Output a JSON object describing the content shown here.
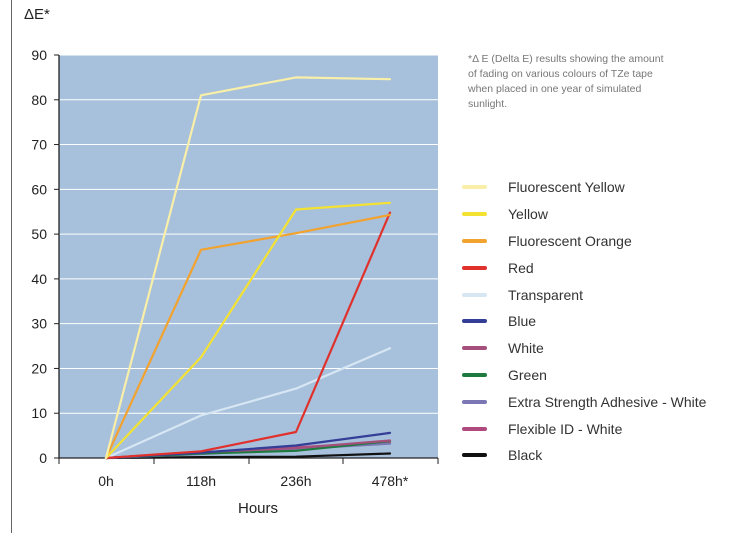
{
  "chart_data": {
    "type": "line",
    "ylabel": "ΔE*",
    "xlabel": "Hours",
    "categories": [
      "0h",
      "118h",
      "236h",
      "478h*"
    ],
    "ylim": [
      0,
      90
    ],
    "yticks": [
      0,
      10,
      20,
      30,
      40,
      50,
      60,
      70,
      80,
      90
    ],
    "grid": true,
    "background_color": "#a7c1dc",
    "legend_position": "right",
    "footnote": "*Δ E (Delta E) results showing the amount of fading on various colours of TZe tape when placed in one year of simulated sunlight.",
    "series": [
      {
        "name": "Fluorescent Yellow",
        "color": "#f9efa8",
        "values": [
          0,
          81,
          85,
          84.6
        ]
      },
      {
        "name": "Yellow",
        "color": "#f4e233",
        "values": [
          0,
          22.5,
          55.5,
          57
        ]
      },
      {
        "name": "Fluorescent Orange",
        "color": "#f2a22e",
        "values": [
          0,
          46.5,
          50.2,
          54.3
        ]
      },
      {
        "name": "Red",
        "color": "#e0312d",
        "values": [
          0,
          1.5,
          5.8,
          54.8
        ]
      },
      {
        "name": "Transparent",
        "color": "#d7e6f3",
        "values": [
          0,
          9.5,
          15.5,
          24.5
        ]
      },
      {
        "name": "Blue",
        "color": "#343e97",
        "values": [
          0,
          1.2,
          2.8,
          5.6
        ]
      },
      {
        "name": "White",
        "color": "#a5507c",
        "values": [
          0,
          1.3,
          2.2,
          3.9
        ]
      },
      {
        "name": "Green",
        "color": "#1f7a40",
        "values": [
          0,
          1.0,
          1.6,
          3.8
        ]
      },
      {
        "name": "Extra Strength Adhesive - White",
        "color": "#7b77b5",
        "values": [
          0,
          0.9,
          2.0,
          3.2
        ]
      },
      {
        "name": "Flexible ID - White",
        "color": "#b04a7e",
        "values": [
          0,
          1.1,
          2.4,
          3.5
        ]
      },
      {
        "name": "Black",
        "color": "#111111",
        "values": [
          0,
          0.2,
          0.3,
          1.0
        ]
      }
    ]
  }
}
